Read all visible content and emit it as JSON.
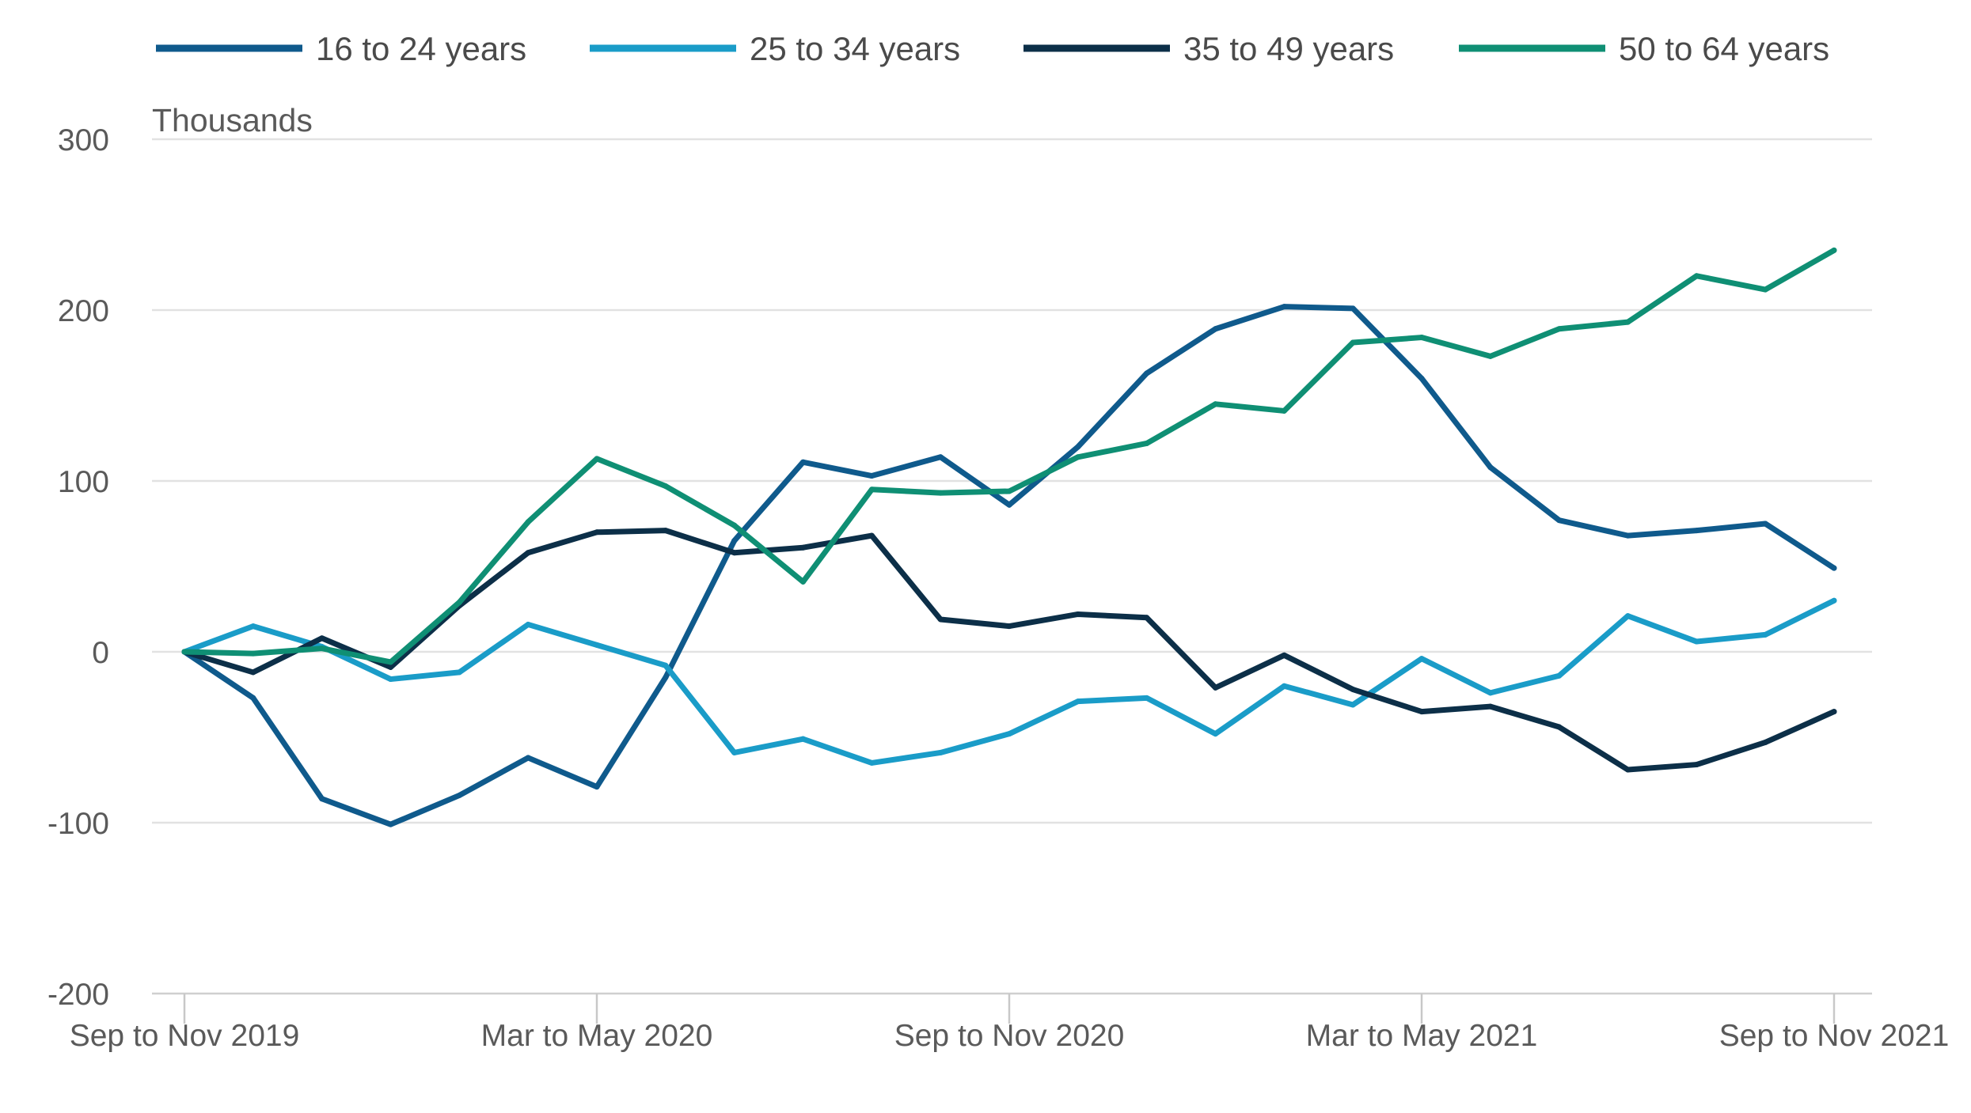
{
  "chart_data": {
    "type": "line",
    "unit_label": "Thousands",
    "ylim": [
      -200,
      300
    ],
    "yticks": [
      300,
      200,
      100,
      0,
      -100,
      -200
    ],
    "ytick_labels": [
      "300",
      "200",
      "100",
      "0",
      "-100",
      "-200"
    ],
    "x_count": 25,
    "xticks": [
      {
        "index": 0,
        "label": "Sep to Nov 2019"
      },
      {
        "index": 6,
        "label": "Mar to May 2020"
      },
      {
        "index": 12,
        "label": "Sep to Nov 2020"
      },
      {
        "index": 18,
        "label": "Mar to May 2021"
      },
      {
        "index": 24,
        "label": "Sep to Nov 2021"
      }
    ],
    "grid": true,
    "legend_position": "top",
    "series": [
      {
        "name": "16 to 24 years",
        "color": "#0f5a8c",
        "values": [
          0,
          -27,
          -86,
          -101,
          -84,
          -62,
          -79,
          -15,
          65,
          111,
          103,
          114,
          86,
          120,
          163,
          189,
          202,
          201,
          160,
          108,
          77,
          68,
          71,
          75,
          49
        ]
      },
      {
        "name": "25 to 34 years",
        "color": "#1a9cc8",
        "values": [
          0,
          15,
          3,
          -16,
          -12,
          16,
          4,
          -8,
          -59,
          -51,
          -65,
          -59,
          -48,
          -29,
          -27,
          -48,
          -20,
          -31,
          -4,
          -24,
          -14,
          21,
          6,
          10,
          30
        ]
      },
      {
        "name": "35 to 49 years",
        "color": "#0c2f48",
        "values": [
          0,
          -12,
          8,
          -9,
          27,
          58,
          70,
          71,
          58,
          61,
          68,
          19,
          15,
          22,
          20,
          -21,
          -2,
          -22,
          -35,
          -32,
          -44,
          -69,
          -66,
          -53,
          -35
        ]
      },
      {
        "name": "50 to 64 years",
        "color": "#0f8f74",
        "values": [
          0,
          -1,
          2,
          -6,
          29,
          76,
          113,
          97,
          74,
          41,
          95,
          93,
          94,
          114,
          122,
          145,
          141,
          181,
          184,
          173,
          189,
          193,
          220,
          212,
          235
        ]
      }
    ]
  }
}
